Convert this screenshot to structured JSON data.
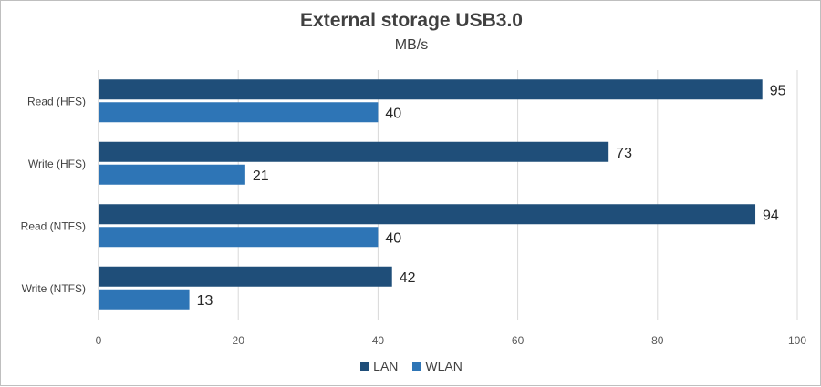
{
  "chart_data": {
    "type": "bar",
    "orientation": "horizontal",
    "title": "External storage USB3.0",
    "subtitle": "MB/s",
    "categories": [
      "Read (HFS)",
      "Write (HFS)",
      "Read (NTFS)",
      "Write (NTFS)"
    ],
    "series": [
      {
        "name": "LAN",
        "values": [
          95,
          73,
          94,
          42
        ],
        "color": "#1f4e79"
      },
      {
        "name": "WLAN",
        "values": [
          40,
          21,
          40,
          13
        ],
        "color": "#2e75b6"
      }
    ],
    "xlim": [
      0,
      100
    ],
    "xticks": [
      0,
      20,
      40,
      60,
      80,
      100
    ],
    "grid": true,
    "legend": "bottom"
  }
}
